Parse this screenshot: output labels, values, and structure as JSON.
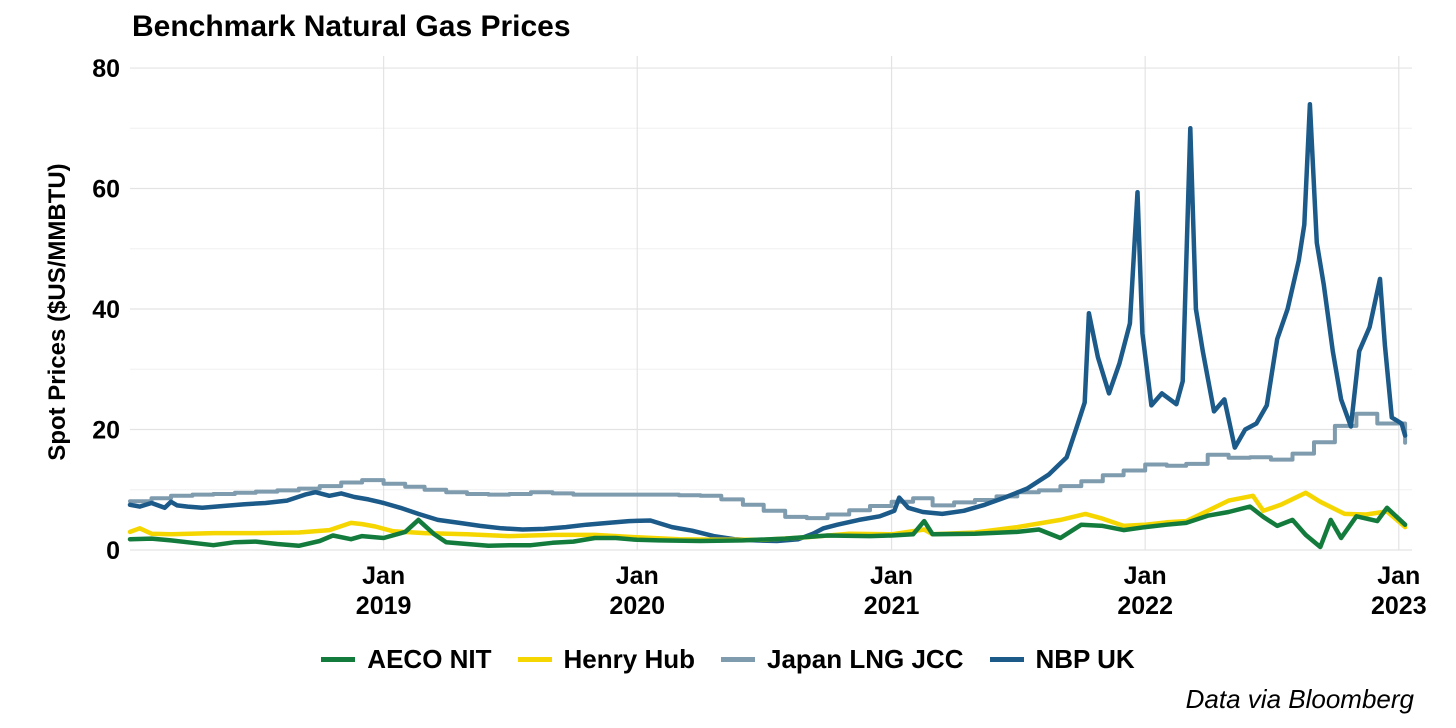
{
  "chart_data": {
    "type": "line",
    "title": "Benchmark Natural Gas Prices",
    "xlabel": "",
    "ylabel": "Spot Prices ($US/MMBTU)",
    "xlim": [
      "2018-01-01",
      "2023-01-20"
    ],
    "ylim": [
      0,
      82
    ],
    "y_ticks": [
      0,
      20,
      40,
      60,
      80
    ],
    "x_ticks": [
      {
        "date": "2019-01-01",
        "line1": "Jan",
        "line2": "2019"
      },
      {
        "date": "2020-01-01",
        "line1": "Jan",
        "line2": "2020"
      },
      {
        "date": "2021-01-01",
        "line1": "Jan",
        "line2": "2021"
      },
      {
        "date": "2022-01-01",
        "line1": "Jan",
        "line2": "2022"
      },
      {
        "date": "2023-01-01",
        "line1": "Jan",
        "line2": "2023"
      }
    ],
    "grid": true,
    "legend_position": "bottom",
    "series": [
      {
        "name": "Japan LNG JCC",
        "color": "#7F9BAE",
        "step": true,
        "x": [
          "2018-01-01",
          "2018-02-01",
          "2018-03-01",
          "2018-04-01",
          "2018-05-01",
          "2018-06-01",
          "2018-07-01",
          "2018-08-01",
          "2018-09-01",
          "2018-10-01",
          "2018-11-01",
          "2018-12-01",
          "2019-01-01",
          "2019-02-01",
          "2019-03-01",
          "2019-04-01",
          "2019-05-01",
          "2019-06-01",
          "2019-07-01",
          "2019-08-01",
          "2019-09-01",
          "2019-10-01",
          "2019-11-01",
          "2019-12-01",
          "2020-01-01",
          "2020-02-01",
          "2020-03-01",
          "2020-04-01",
          "2020-05-01",
          "2020-06-01",
          "2020-07-01",
          "2020-08-01",
          "2020-09-01",
          "2020-10-01",
          "2020-11-01",
          "2020-12-01",
          "2021-01-01",
          "2021-02-01",
          "2021-03-01",
          "2021-04-01",
          "2021-05-01",
          "2021-06-01",
          "2021-07-01",
          "2021-08-01",
          "2021-09-01",
          "2021-10-01",
          "2021-11-01",
          "2021-12-01",
          "2022-01-01",
          "2022-02-01",
          "2022-03-01",
          "2022-04-01",
          "2022-05-01",
          "2022-06-01",
          "2022-07-01",
          "2022-08-01",
          "2022-09-01",
          "2022-10-01",
          "2022-11-01",
          "2022-12-01",
          "2023-01-10"
        ],
        "y": [
          8.1,
          8.6,
          9.0,
          9.2,
          9.3,
          9.5,
          9.7,
          9.9,
          10.2,
          10.6,
          11.2,
          11.6,
          11.0,
          10.5,
          10.0,
          9.6,
          9.3,
          9.2,
          9.3,
          9.6,
          9.4,
          9.2,
          9.2,
          9.2,
          9.2,
          9.2,
          9.1,
          9.0,
          8.4,
          7.5,
          6.5,
          5.5,
          5.3,
          5.9,
          6.6,
          7.3,
          8.0,
          8.6,
          7.4,
          7.9,
          8.3,
          8.9,
          9.6,
          9.9,
          10.6,
          11.4,
          12.4,
          13.2,
          14.2,
          14.0,
          14.3,
          15.8,
          15.3,
          15.4,
          15.0,
          16.0,
          17.9,
          20.6,
          22.6,
          21.0,
          17.8
        ]
      },
      {
        "name": "NBP UK",
        "color": "#1C5A8A",
        "x": [
          "2018-01-01",
          "2018-01-15",
          "2018-02-01",
          "2018-02-20",
          "2018-03-01",
          "2018-03-10",
          "2018-03-25",
          "2018-04-15",
          "2018-05-15",
          "2018-06-15",
          "2018-07-15",
          "2018-08-15",
          "2018-09-10",
          "2018-09-25",
          "2018-10-15",
          "2018-11-01",
          "2018-11-20",
          "2018-12-10",
          "2019-01-01",
          "2019-01-25",
          "2019-02-20",
          "2019-03-20",
          "2019-04-20",
          "2019-05-20",
          "2019-06-20",
          "2019-07-20",
          "2019-08-20",
          "2019-09-20",
          "2019-10-20",
          "2019-11-20",
          "2019-12-20",
          "2020-01-20",
          "2020-02-20",
          "2020-03-20",
          "2020-04-20",
          "2020-05-20",
          "2020-06-20",
          "2020-07-20",
          "2020-08-20",
          "2020-09-10",
          "2020-09-25",
          "2020-10-15",
          "2020-11-15",
          "2020-12-15",
          "2021-01-05",
          "2021-01-12",
          "2021-01-25",
          "2021-02-15",
          "2021-03-15",
          "2021-04-15",
          "2021-05-15",
          "2021-06-15",
          "2021-07-15",
          "2021-08-15",
          "2021-09-10",
          "2021-09-25",
          "2021-10-06",
          "2021-10-12",
          "2021-10-25",
          "2021-11-10",
          "2021-11-25",
          "2021-12-10",
          "2021-12-21",
          "2021-12-28",
          "2022-01-10",
          "2022-01-25",
          "2022-02-15",
          "2022-02-24",
          "2022-03-07",
          "2022-03-15",
          "2022-03-25",
          "2022-04-10",
          "2022-04-25",
          "2022-05-10",
          "2022-05-25",
          "2022-06-10",
          "2022-06-25",
          "2022-07-10",
          "2022-07-25",
          "2022-08-10",
          "2022-08-18",
          "2022-08-26",
          "2022-09-05",
          "2022-09-15",
          "2022-09-28",
          "2022-10-10",
          "2022-10-24",
          "2022-11-05",
          "2022-11-20",
          "2022-12-05",
          "2022-12-12",
          "2022-12-22",
          "2023-01-05",
          "2023-01-10"
        ],
        "y": [
          7.5,
          7.2,
          7.8,
          7.0,
          8.0,
          7.4,
          7.2,
          7.0,
          7.3,
          7.6,
          7.8,
          8.2,
          9.2,
          9.6,
          9.0,
          9.4,
          8.8,
          8.4,
          7.8,
          7.0,
          6.0,
          5.0,
          4.5,
          4.0,
          3.6,
          3.4,
          3.5,
          3.8,
          4.2,
          4.5,
          4.8,
          4.9,
          3.8,
          3.2,
          2.3,
          1.8,
          1.6,
          1.5,
          1.8,
          2.7,
          3.6,
          4.2,
          5.0,
          5.6,
          6.5,
          8.7,
          7.0,
          6.3,
          6.0,
          6.5,
          7.5,
          8.8,
          10.2,
          12.5,
          15.4,
          20.6,
          24.5,
          39.3,
          32.0,
          26.0,
          31.0,
          37.6,
          59.4,
          36.0,
          24.0,
          26.0,
          24.2,
          28.0,
          70.0,
          40.0,
          33.0,
          23.0,
          25.0,
          17.0,
          20.0,
          21.0,
          24.0,
          35.0,
          40.0,
          48.0,
          54.0,
          74.0,
          51.0,
          44.0,
          33.0,
          25.0,
          20.5,
          33.0,
          37.0,
          45.0,
          34.0,
          22.0,
          21.0,
          19.0
        ]
      },
      {
        "name": "Henry Hub",
        "color": "#F5D600",
        "x": [
          "2018-01-01",
          "2018-01-15",
          "2018-02-01",
          "2018-03-01",
          "2018-05-01",
          "2018-07-01",
          "2018-09-01",
          "2018-10-15",
          "2018-11-15",
          "2018-12-01",
          "2018-12-20",
          "2019-01-15",
          "2019-03-01",
          "2019-05-01",
          "2019-07-01",
          "2019-09-01",
          "2019-11-01",
          "2020-01-01",
          "2020-03-01",
          "2020-05-01",
          "2020-07-01",
          "2020-09-01",
          "2020-11-01",
          "2021-01-01",
          "2021-02-17",
          "2021-03-01",
          "2021-05-01",
          "2021-07-01",
          "2021-09-01",
          "2021-10-07",
          "2021-11-01",
          "2021-12-01",
          "2022-01-01",
          "2022-02-01",
          "2022-03-01",
          "2022-04-01",
          "2022-05-01",
          "2022-06-05",
          "2022-06-20",
          "2022-07-15",
          "2022-08-20",
          "2022-09-10",
          "2022-10-15",
          "2022-11-15",
          "2022-12-15",
          "2023-01-10"
        ],
        "y": [
          3.0,
          3.6,
          2.7,
          2.6,
          2.8,
          2.8,
          2.9,
          3.3,
          4.5,
          4.3,
          3.9,
          3.1,
          2.8,
          2.6,
          2.3,
          2.5,
          2.5,
          2.1,
          1.8,
          1.7,
          1.7,
          2.1,
          2.7,
          2.6,
          3.4,
          2.6,
          2.9,
          3.8,
          5.0,
          6.0,
          5.2,
          4.0,
          4.2,
          4.6,
          4.8,
          6.5,
          8.2,
          9.0,
          6.5,
          7.5,
          9.5,
          8.0,
          6.0,
          5.9,
          6.4,
          3.8
        ]
      },
      {
        "name": "AECO NIT",
        "color": "#137C3D",
        "x": [
          "2018-01-01",
          "2018-02-01",
          "2018-03-01",
          "2018-04-01",
          "2018-05-01",
          "2018-06-01",
          "2018-07-01",
          "2018-08-01",
          "2018-09-01",
          "2018-10-01",
          "2018-10-20",
          "2018-11-15",
          "2018-12-01",
          "2019-01-01",
          "2019-02-01",
          "2019-02-20",
          "2019-03-15",
          "2019-04-01",
          "2019-05-01",
          "2019-06-01",
          "2019-07-01",
          "2019-08-01",
          "2019-09-01",
          "2019-10-01",
          "2019-11-01",
          "2019-12-01",
          "2020-01-01",
          "2020-02-01",
          "2020-04-01",
          "2020-06-01",
          "2020-08-01",
          "2020-10-01",
          "2020-12-01",
          "2021-01-01",
          "2021-02-01",
          "2021-02-17",
          "2021-03-01",
          "2021-05-01",
          "2021-07-01",
          "2021-08-01",
          "2021-09-01",
          "2021-10-01",
          "2021-11-01",
          "2021-12-01",
          "2022-01-01",
          "2022-02-01",
          "2022-03-01",
          "2022-04-01",
          "2022-05-01",
          "2022-06-01",
          "2022-06-20",
          "2022-07-10",
          "2022-08-01",
          "2022-08-20",
          "2022-09-10",
          "2022-09-25",
          "2022-10-10",
          "2022-11-01",
          "2022-12-01",
          "2022-12-15",
          "2023-01-10"
        ],
        "y": [
          1.8,
          1.9,
          1.6,
          1.2,
          0.8,
          1.3,
          1.4,
          1.0,
          0.7,
          1.5,
          2.4,
          1.8,
          2.3,
          2.0,
          3.0,
          5.0,
          2.6,
          1.3,
          1.0,
          0.7,
          0.8,
          0.8,
          1.2,
          1.4,
          2.0,
          2.0,
          1.7,
          1.6,
          1.5,
          1.6,
          1.9,
          2.4,
          2.3,
          2.4,
          2.6,
          4.8,
          2.6,
          2.7,
          3.0,
          3.4,
          2.0,
          4.2,
          4.0,
          3.3,
          3.8,
          4.2,
          4.5,
          5.7,
          6.3,
          7.2,
          5.5,
          4.0,
          5.0,
          2.5,
          0.5,
          5.0,
          2.0,
          5.6,
          4.8,
          7.0,
          4.2
        ]
      }
    ]
  },
  "caption": "Data via Bloomberg"
}
